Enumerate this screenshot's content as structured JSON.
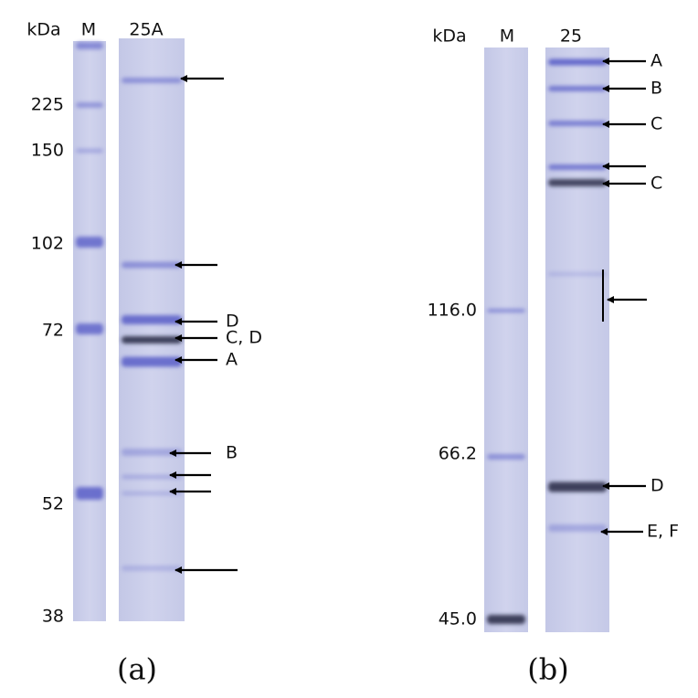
{
  "panels": [
    {
      "unit": "kDa",
      "lanes": [
        "M",
        "25A"
      ],
      "markers": [
        "225",
        "150",
        "102",
        "72",
        "52",
        "38"
      ],
      "band_labels": [
        "D",
        "C, D",
        "A",
        "B"
      ],
      "caption": "(a)"
    },
    {
      "unit": "kDa",
      "lanes": [
        "M",
        "25"
      ],
      "markers": [
        "116.0",
        "66.2",
        "45.0"
      ],
      "band_labels": [
        "A",
        "B",
        "C",
        "C",
        "D",
        "E, F"
      ],
      "caption": "(b)"
    }
  ]
}
